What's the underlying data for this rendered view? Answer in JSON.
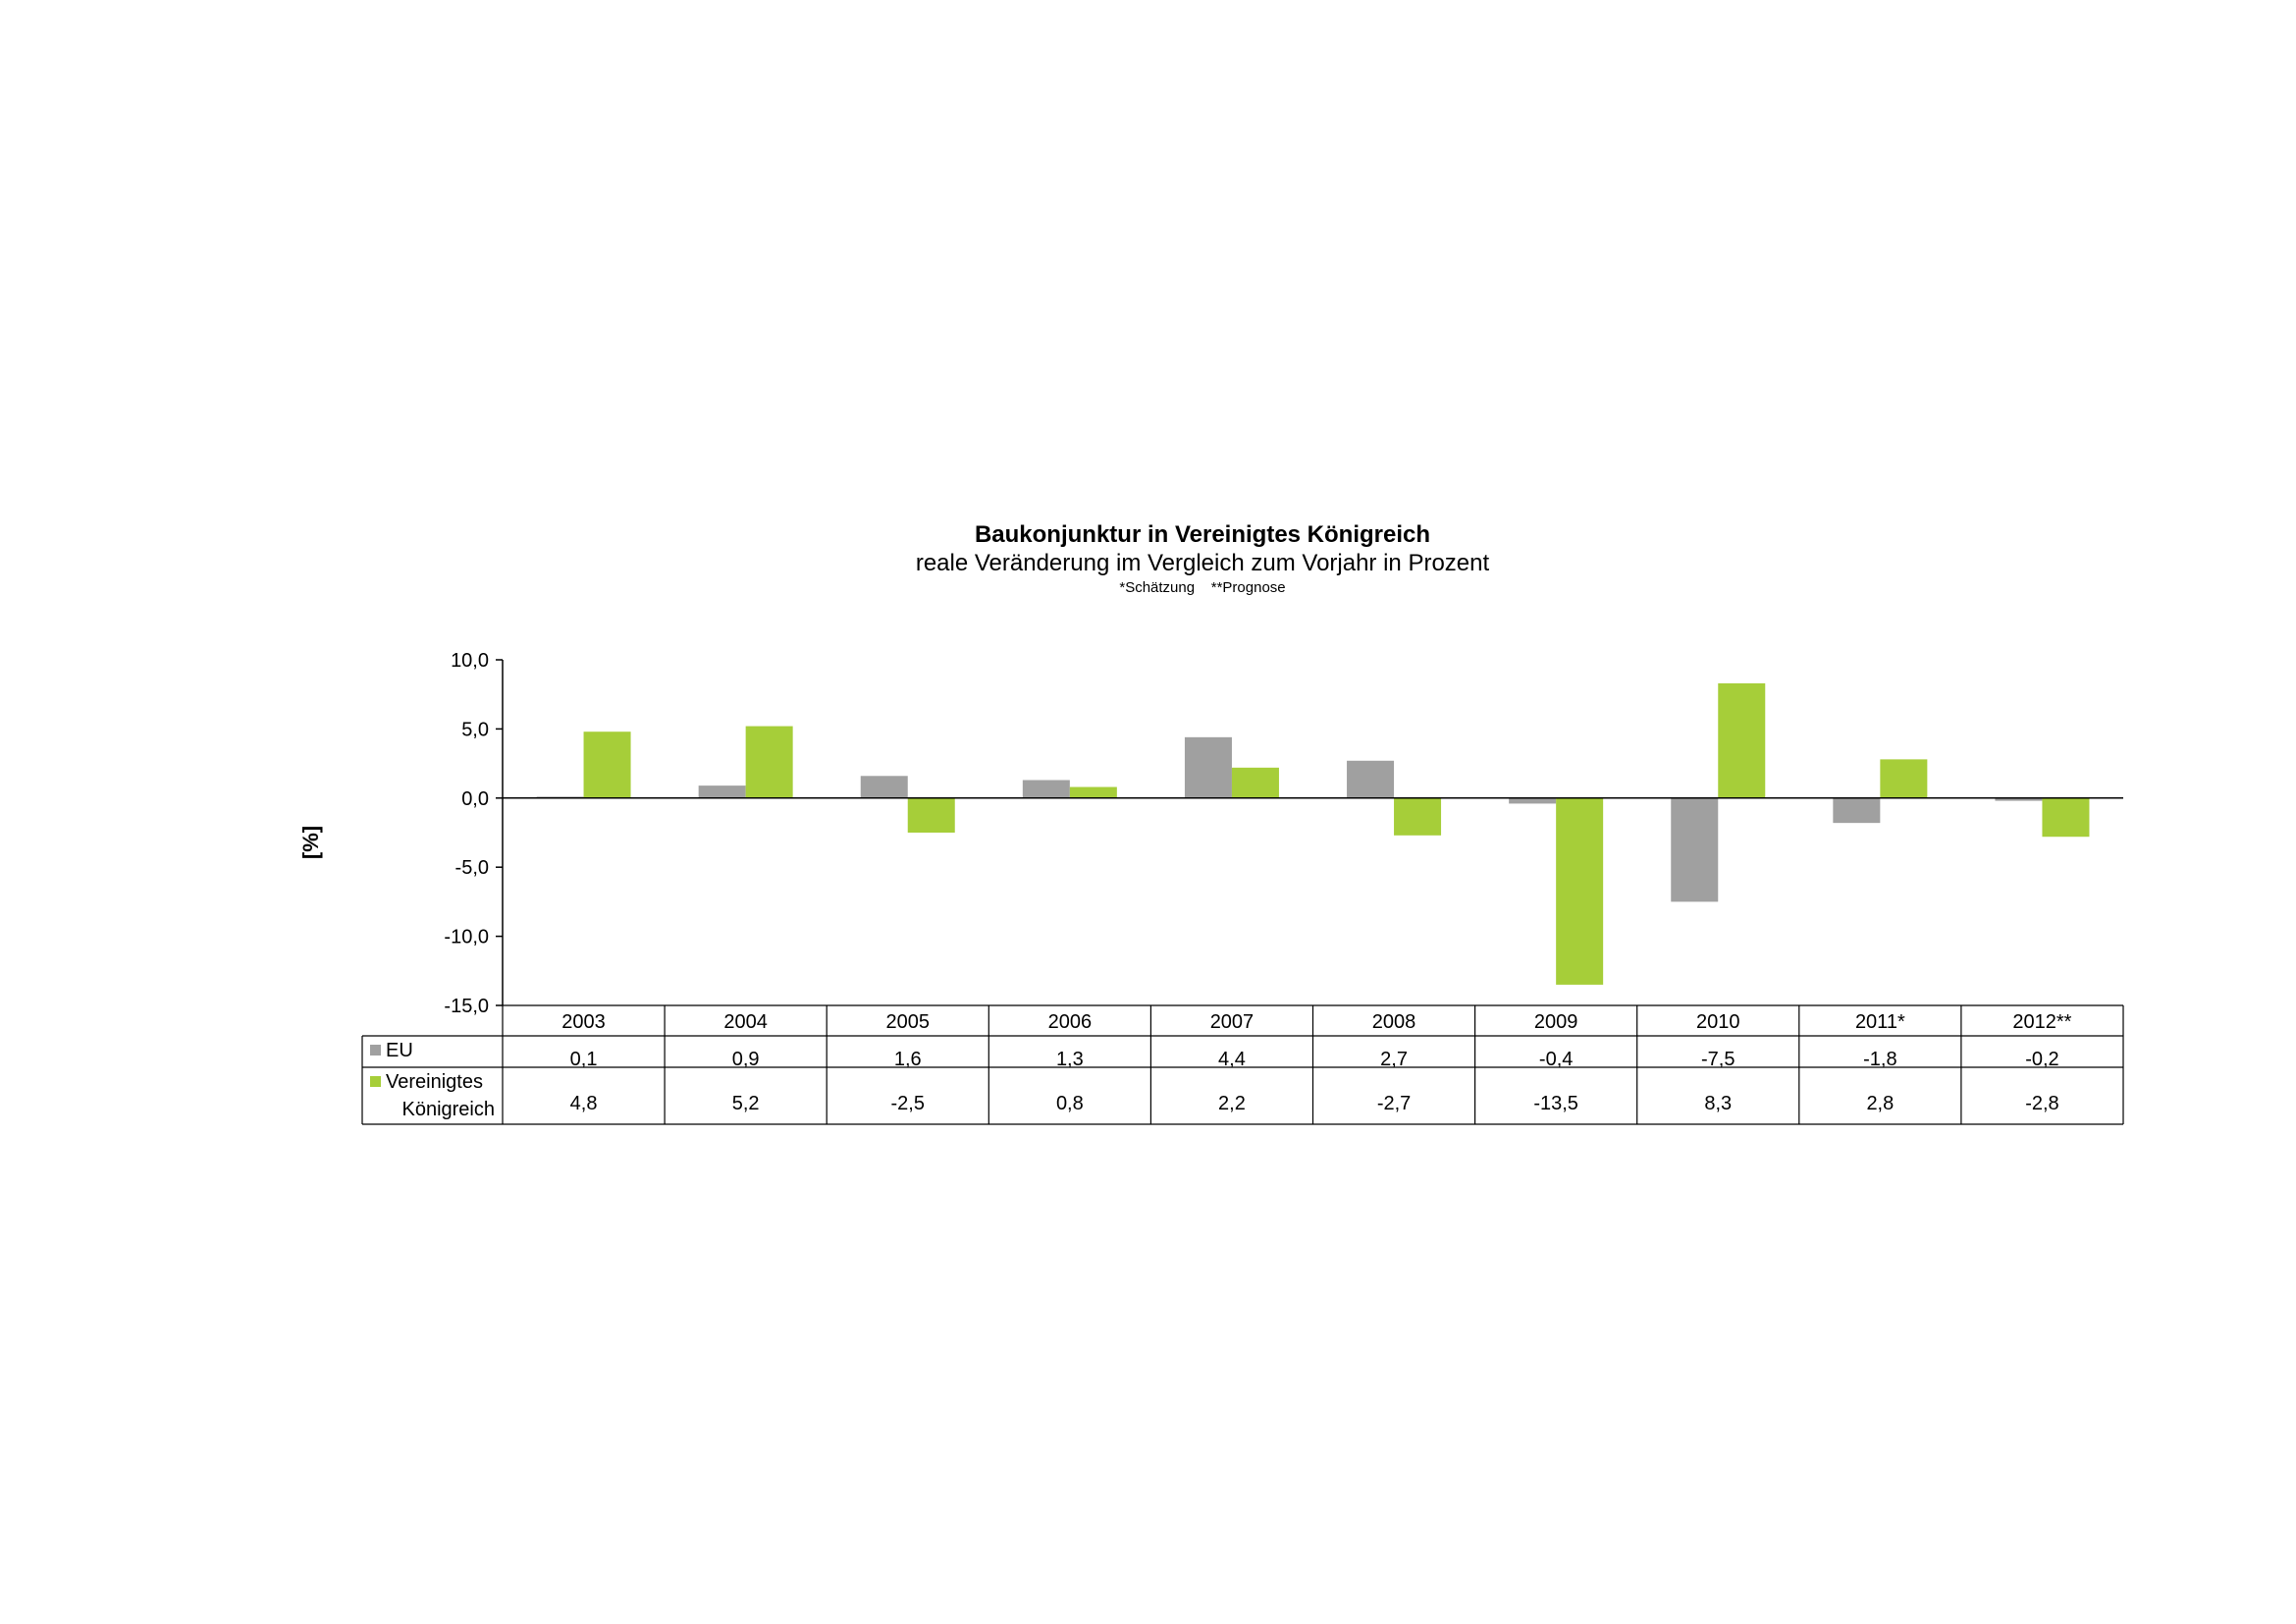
{
  "chart_data": {
    "type": "bar",
    "title": "Baukonjunktur in Vereinigtes Königreich",
    "subtitle": "reale Veränderung im Vergleich zum Vorjahr in Prozent",
    "note": "*Schätzung    **Prognose",
    "ylabel": "[%]",
    "ylim": [
      -15,
      10
    ],
    "yticks": [
      "10,0",
      "5,0",
      "0,0",
      "-5,0",
      "-10,0",
      "-15,0"
    ],
    "categories": [
      "2003",
      "2004",
      "2005",
      "2006",
      "2007",
      "2008",
      "2009",
      "2010",
      "2011*",
      "2012**"
    ],
    "series": [
      {
        "name": "EU",
        "color": "#a0a0a0",
        "values": [
          0.1,
          0.9,
          1.6,
          1.3,
          4.4,
          2.7,
          -0.4,
          -7.5,
          -1.8,
          -0.2
        ],
        "labels": [
          "0,1",
          "0,9",
          "1,6",
          "1,3",
          "4,4",
          "2,7",
          "-0,4",
          "-7,5",
          "-1,8",
          "-0,2"
        ]
      },
      {
        "name": "Vereinigtes Königreich",
        "color": "#a6ce39",
        "values": [
          4.8,
          5.2,
          -2.5,
          0.8,
          2.2,
          -2.7,
          -13.5,
          8.3,
          2.8,
          -2.8
        ],
        "labels": [
          "4,8",
          "5,2",
          "-2,5",
          "0,8",
          "2,2",
          "-2,7",
          "-13,5",
          "8,3",
          "2,8",
          "-2,8"
        ]
      }
    ],
    "legend": "data-table",
    "grid": false
  }
}
